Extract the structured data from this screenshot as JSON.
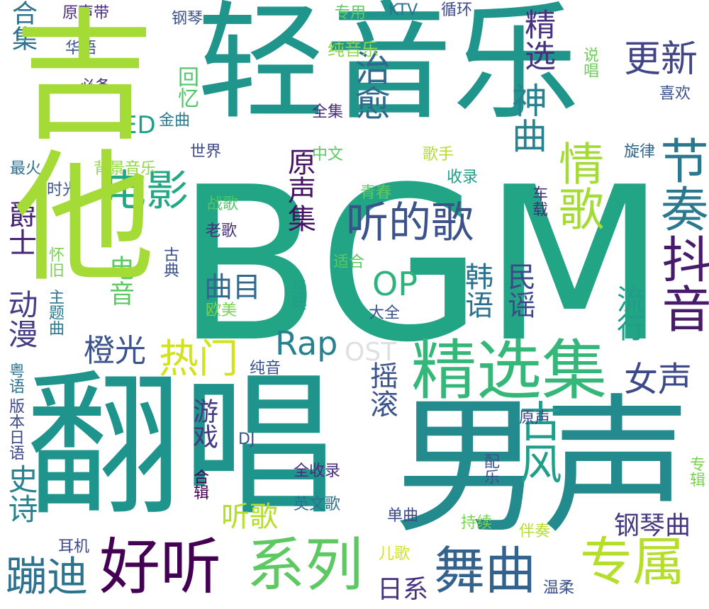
{
  "words": [
    {
      "text": "BGM",
      "color": "#21a585"
    },
    {
      "text": "翻唱",
      "color": "#1f948c"
    },
    {
      "text": "男声",
      "color": "#238a8d"
    },
    {
      "text": "轻音乐",
      "color": "#1f958b"
    },
    {
      "text": "精选集",
      "color": "#35b779"
    },
    {
      "text": "好听",
      "color": "#440154"
    },
    {
      "text": "系列",
      "color": "#5ec962"
    },
    {
      "text": "舞曲",
      "color": "#33638d"
    },
    {
      "text": "专属",
      "color": "#b5de2b"
    },
    {
      "text": "听的歌",
      "color": "#3b528b"
    },
    {
      "text": "情歌",
      "color": "#a5db36"
    },
    {
      "text": "抖音",
      "color": "#481a6c"
    },
    {
      "text": "节奏",
      "color": "#2a788e"
    },
    {
      "text": "电影",
      "color": "#22a884"
    },
    {
      "text": "古风",
      "color": "#1f9e89"
    },
    {
      "text": "蹦迪",
      "color": "#2c728e"
    },
    {
      "text": "热门",
      "color": "#d2e21b"
    },
    {
      "text": "女声",
      "color": "#3e4989"
    },
    {
      "text": "治愈",
      "color": "#31688e"
    },
    {
      "text": "神曲",
      "color": "#26828e"
    },
    {
      "text": "更新",
      "color": "#414487"
    },
    {
      "text": "精选",
      "color": "#46327e"
    },
    {
      "text": "Rap",
      "color": "#26828e"
    },
    {
      "text": "OP",
      "color": "#2db27d"
    },
    {
      "text": "橙光",
      "color": "#3b528b"
    },
    {
      "text": "史诗",
      "color": "#25848e"
    },
    {
      "text": "动漫",
      "color": "#433e85"
    },
    {
      "text": "爵士",
      "color": "#482475"
    },
    {
      "text": "原声集",
      "color": "#471365"
    },
    {
      "text": "曲目",
      "color": "#31688e"
    },
    {
      "text": "韩语",
      "color": "#2c728e"
    },
    {
      "text": "民谣",
      "color": "#3e4989"
    },
    {
      "text": "流行",
      "color": "#1f9e89"
    },
    {
      "text": "摇滚",
      "color": "#3b528b"
    },
    {
      "text": "游戏",
      "color": "#443983"
    },
    {
      "text": "听歌",
      "color": "#b5de2b"
    },
    {
      "text": "钢琴曲",
      "color": "#453781"
    },
    {
      "text": "日系",
      "color": "#46327e"
    },
    {
      "text": "OST",
      "color": "#e0e0e0"
    },
    {
      "text": "电音",
      "color": "#5ec962"
    },
    {
      "text": "ED",
      "color": "#1f9e89"
    },
    {
      "text": "回忆",
      "color": "#52c569"
    },
    {
      "text": "全集",
      "color": "#472f7d"
    },
    {
      "text": "金曲",
      "color": "#2a788e"
    },
    {
      "text": "合集",
      "color": "#2c728e"
    },
    {
      "text": "华语",
      "color": "#3b528b"
    },
    {
      "text": "原声带",
      "color": "#472d7b"
    },
    {
      "text": "钢琴",
      "color": "#3b528b"
    },
    {
      "text": "专用",
      "color": "#5ec962"
    },
    {
      "text": "KTV",
      "color": "#2c728e"
    },
    {
      "text": "循环",
      "color": "#3e4989"
    },
    {
      "text": "纯音乐",
      "color": "#90d743"
    },
    {
      "text": "必备",
      "color": "#472d7b"
    },
    {
      "text": "说唱",
      "color": "#6ccd5a"
    },
    {
      "text": "喜欢",
      "color": "#3b528b"
    },
    {
      "text": "世界",
      "color": "#3e4989"
    },
    {
      "text": "中文",
      "color": "#5ec962"
    },
    {
      "text": "背景音乐",
      "color": "#90d743"
    },
    {
      "text": "歌手",
      "color": "#b5de2b"
    },
    {
      "text": "最火",
      "color": "#2c728e"
    },
    {
      "text": "收录",
      "color": "#1f9e89"
    },
    {
      "text": "旋律",
      "color": "#31688e"
    },
    {
      "text": "车载",
      "color": "#472d7b"
    },
    {
      "text": "时光",
      "color": "#3b528b"
    },
    {
      "text": "战歌",
      "color": "#52c569"
    },
    {
      "text": "青春",
      "color": "#5ec962"
    },
    {
      "text": "老歌",
      "color": "#472d7b"
    },
    {
      "text": "怀旧",
      "color": "#7ad151"
    },
    {
      "text": "古典",
      "color": "#3b528b"
    },
    {
      "text": "适合",
      "color": "#5ec962"
    },
    {
      "text": "经典",
      "color": "#1f9e89"
    },
    {
      "text": "欧美",
      "color": "#7ad151"
    },
    {
      "text": "主题曲",
      "color": "#2a788e"
    },
    {
      "text": "大全",
      "color": "#3b528b"
    },
    {
      "text": "粤语",
      "color": "#2c728e"
    },
    {
      "text": "纯音",
      "color": "#3b528b"
    },
    {
      "text": "版本日语",
      "color": "#3e4989"
    },
    {
      "text": "DJ",
      "color": "#3b528b"
    },
    {
      "text": "配乐",
      "color": "#3b528b"
    },
    {
      "text": "原声",
      "color": "#3e4989"
    },
    {
      "text": "专辑",
      "color": "#7ad151"
    },
    {
      "text": "合辑",
      "color": "#440154"
    },
    {
      "text": "全收录",
      "color": "#472d7b"
    },
    {
      "text": "英文歌",
      "color": "#2c728e"
    },
    {
      "text": "单曲",
      "color": "#3e4989"
    },
    {
      "text": "持续",
      "color": "#7ad151"
    },
    {
      "text": "伴奏",
      "color": "#b5de2b"
    },
    {
      "text": "耳机",
      "color": "#3e4989"
    },
    {
      "text": "儿歌",
      "color": "#d2e21b"
    },
    {
      "text": "温柔",
      "color": "#3b528b"
    },
    {
      "text": "吉他",
      "color": "#a5db36"
    }
  ]
}
